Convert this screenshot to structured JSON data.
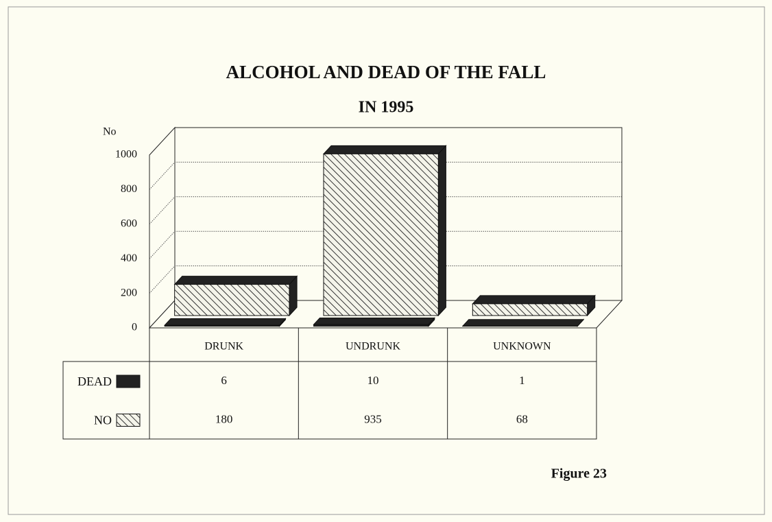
{
  "chart_data": {
    "type": "bar3d",
    "title": "ALCOHOL  AND DEAD OF THE FALL",
    "subtitle": "IN 1995",
    "y_label": "No",
    "annotation": "Figure 23",
    "categories": [
      "DRUNK",
      "UNDRUNK",
      "UNKNOWN"
    ],
    "series": [
      {
        "name": "DEAD",
        "color": "#222222",
        "values": [
          6,
          10,
          1
        ]
      },
      {
        "name": "NO",
        "color": "#222222",
        "hatch": true,
        "values": [
          180,
          935,
          68
        ]
      }
    ],
    "ylim": [
      0,
      1000
    ],
    "yticks": [
      0,
      200,
      400,
      600,
      800,
      1000
    ],
    "grid": true
  }
}
